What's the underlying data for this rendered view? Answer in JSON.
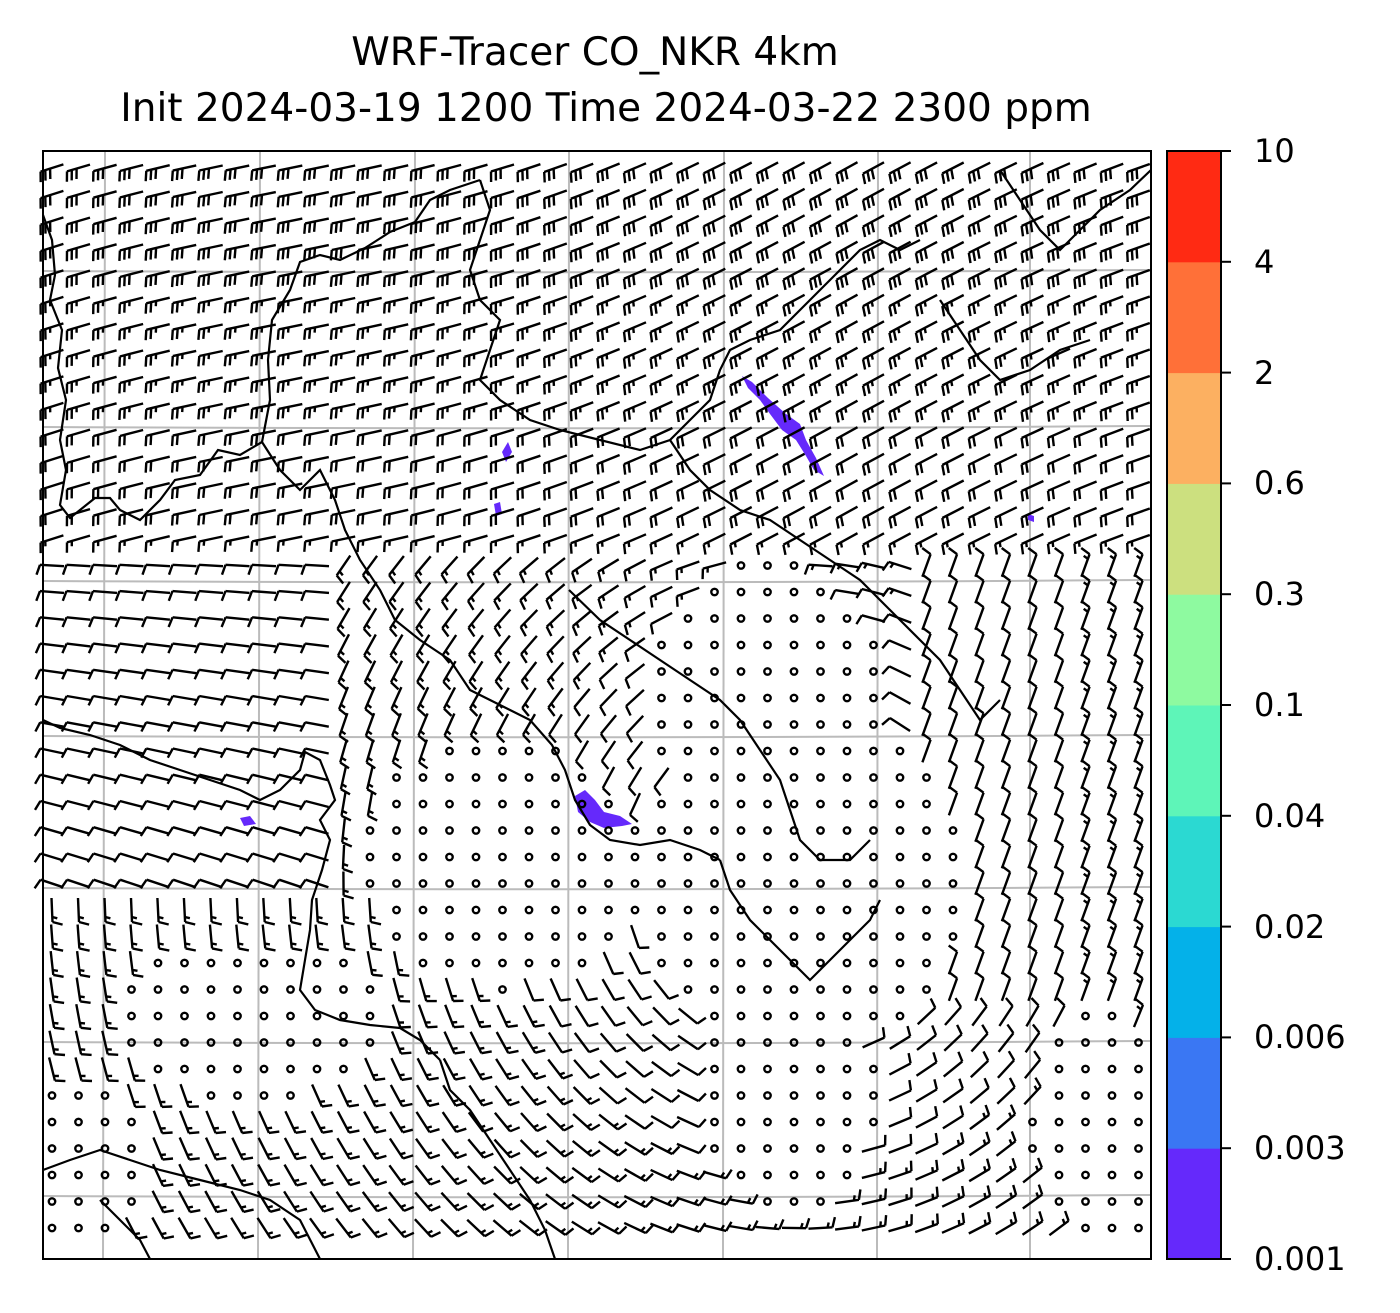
{
  "title": {
    "line1": "WRF-Tracer CO_NKR 4km",
    "line2": "Init 2024-03-19 1200 Time 2024-03-22 2300 ppm"
  },
  "colorbar": {
    "levels": [
      "0.001",
      "0.003",
      "0.006",
      "0.02",
      "0.04",
      "0.1",
      "0.3",
      "0.6",
      "2",
      "4",
      "10"
    ],
    "colors": [
      "#6529fb",
      "#3a77f3",
      "#04b1e9",
      "#2bd9d2",
      "#5ef5b8",
      "#8efaa0",
      "#cce07f",
      "#fcb061",
      "#ff7038",
      "#ff2a13"
    ]
  },
  "map": {
    "gridlines": true,
    "wind_barbs": true,
    "coastlines": true,
    "tracer_color": "#6529fb"
  }
}
